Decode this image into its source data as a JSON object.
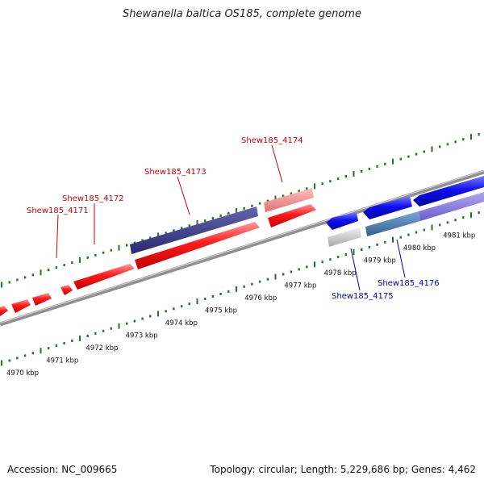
{
  "title": "Shewanella baltica OS185, complete genome",
  "footer": {
    "accession": "Accession: NC_009665",
    "summary": "Topology: circular; Length: 5,229,686 bp; Genes: 4,462"
  },
  "colors": {
    "forward_gene": "#ff0000",
    "forward_gene_light": "#f08080",
    "reverse_gene": "#0000ee",
    "reverse_gene_light": "#8877dd",
    "dark_gene": "#3a3a88",
    "steel_gene": "#4a7fb0",
    "grey_gene": "#c8c8c8",
    "ticks": "#1e7a1e",
    "backbone": "#888888",
    "label_forward": "#cc0000",
    "label_reverse": "#0000bb"
  },
  "scale": {
    "unit": "kbp",
    "labels": [
      "4970 kbp",
      "4971 kbp",
      "4972 kbp",
      "4973 kbp",
      "4974 kbp",
      "4975 kbp",
      "4976 kbp",
      "4977 kbp",
      "4978 kbp",
      "4979 kbp",
      "4980 kbp",
      "4981 kbp"
    ]
  },
  "gene_labels": [
    {
      "text": "Shew185_4171",
      "strand": "forward"
    },
    {
      "text": "Shew185_4172",
      "strand": "forward"
    },
    {
      "text": "Shew185_4173",
      "strand": "forward"
    },
    {
      "text": "Shew185_4174",
      "strand": "forward"
    },
    {
      "text": "Shew185_4175",
      "strand": "reverse"
    },
    {
      "text": "Shew185_4176",
      "strand": "reverse"
    }
  ]
}
